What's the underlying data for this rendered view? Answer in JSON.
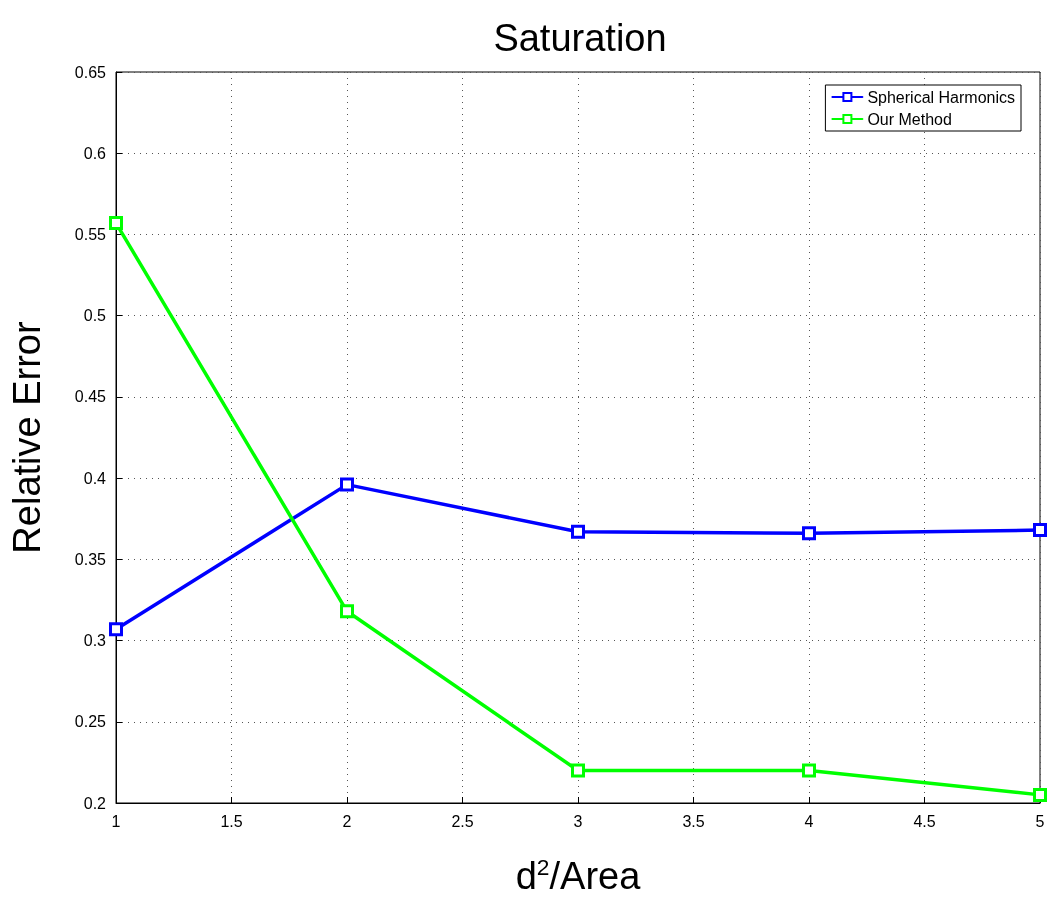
{
  "chart_data": {
    "type": "line",
    "title": "Saturation",
    "xlabel": "d$^{2}$/Area",
    "ylabel": "Relative Error",
    "x": [
      1,
      2,
      3,
      4,
      5
    ],
    "series": [
      {
        "name": "Spherical Harmonics",
        "color": "#0000ff",
        "values": [
          0.307,
          0.396,
          0.367,
          0.366,
          0.368
        ]
      },
      {
        "name": "Our Method",
        "color": "#00ff00",
        "values": [
          0.557,
          0.318,
          0.22,
          0.22,
          0.205
        ]
      }
    ],
    "xlim": [
      1,
      5
    ],
    "xticks": [
      1,
      1.5,
      2,
      2.5,
      3,
      3.5,
      4,
      4.5,
      5
    ],
    "ylim": [
      0.2,
      0.65
    ],
    "yticks": [
      0.2,
      0.25,
      0.3,
      0.35,
      0.4,
      0.45,
      0.5,
      0.55,
      0.6,
      0.65
    ],
    "grid": true,
    "legend": "top right",
    "marker": "square",
    "line_style": "solid"
  }
}
